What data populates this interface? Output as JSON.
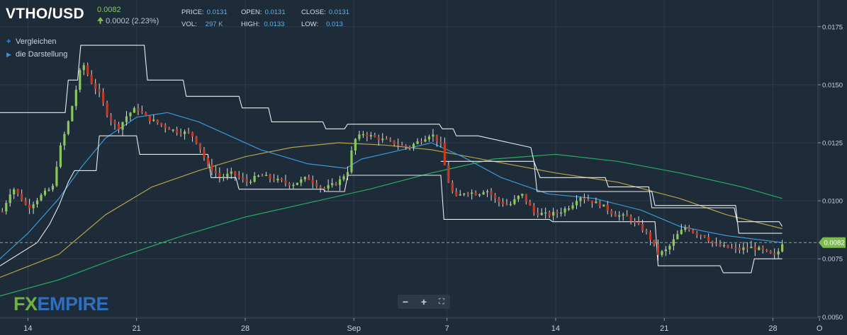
{
  "header": {
    "symbol": "VTHO/USD",
    "last_price": "0.0082",
    "change": "0.0002 (2.23%)",
    "change_direction": "up",
    "stats": [
      {
        "label": "PRICE:",
        "value": "0.0131"
      },
      {
        "label": "OPEN:",
        "value": "0.0131"
      },
      {
        "label": "CLOSE:",
        "value": "0.0131"
      },
      {
        "label": "VOL:",
        "value": "297 K"
      },
      {
        "label": "HIGH:",
        "value": "0.0133"
      },
      {
        "label": "LOW:",
        "value": "0.013"
      }
    ]
  },
  "menu": [
    {
      "icon": "plus-icon",
      "label": "Vergleichen"
    },
    {
      "icon": "play-triangle-icon",
      "label": "die Darstellung"
    }
  ],
  "logo": {
    "fx": "FX",
    "rest": "EMPIRE"
  },
  "zoom_controls": [
    {
      "name": "zoom-out",
      "glyph": "−"
    },
    {
      "name": "zoom-in",
      "glyph": "+"
    },
    {
      "name": "fullscreen",
      "glyph": "⛶"
    }
  ],
  "colors": {
    "background": "#1e2b38",
    "grid": "#2d3b49",
    "up_candle": "#8ac85a",
    "down_candle": "#c23b22",
    "channel": "#e8ecef",
    "ma_fast": "#3a9ad9",
    "ma_mid": "#b5a24a",
    "ma_slow": "#27ae60",
    "price_tag": "#7cbb4e"
  },
  "chart_data": {
    "type": "candlestick",
    "x_ticks": [
      {
        "label": "14",
        "day": 0
      },
      {
        "label": "21",
        "day": 7
      },
      {
        "label": "28",
        "day": 14
      },
      {
        "label": "Sep",
        "day": 21
      },
      {
        "label": "7",
        "day": 27
      },
      {
        "label": "14",
        "day": 34
      },
      {
        "label": "21",
        "day": 41
      },
      {
        "label": "28",
        "day": 48
      },
      {
        "label": "O",
        "day": 51
      }
    ],
    "x_range": [
      -1.8,
      50.9
    ],
    "y_ticks": [
      0.0175,
      0.015,
      0.0125,
      0.01,
      0.0075,
      0.005
    ],
    "y_tick_labels": [
      "0.0175",
      "0.0150",
      "0.0125",
      "0.0100",
      "0.0075",
      "0.0050"
    ],
    "y_range": [
      0.00495,
      0.01865
    ],
    "y_scale": "linear",
    "last_price": 0.0082,
    "last_price_label": "0.0082",
    "grid": true,
    "close_anchors": [
      [
        -1.8,
        0.0093
      ],
      [
        -1.0,
        0.0106
      ],
      [
        0.0,
        0.0097
      ],
      [
        0.8,
        0.0102
      ],
      [
        1.6,
        0.0106
      ],
      [
        2.0,
        0.0121
      ],
      [
        2.6,
        0.0134
      ],
      [
        3.0,
        0.0145
      ],
      [
        3.5,
        0.016
      ],
      [
        4.0,
        0.0152
      ],
      [
        4.6,
        0.0146
      ],
      [
        5.2,
        0.0136
      ],
      [
        5.8,
        0.0131
      ],
      [
        6.4,
        0.0137
      ],
      [
        7.0,
        0.014
      ],
      [
        7.6,
        0.0136
      ],
      [
        8.5,
        0.0133
      ],
      [
        9.5,
        0.013
      ],
      [
        10.5,
        0.0129
      ],
      [
        11.0,
        0.0124
      ],
      [
        11.6,
        0.0115
      ],
      [
        12.4,
        0.011
      ],
      [
        13.2,
        0.0112
      ],
      [
        14.0,
        0.0108
      ],
      [
        15.0,
        0.0111
      ],
      [
        16.0,
        0.0109
      ],
      [
        17.0,
        0.0107
      ],
      [
        18.0,
        0.011
      ],
      [
        19.0,
        0.0105
      ],
      [
        20.0,
        0.0108
      ],
      [
        20.6,
        0.0113
      ],
      [
        21.0,
        0.0126
      ],
      [
        21.6,
        0.0129
      ],
      [
        22.5,
        0.0127
      ],
      [
        23.5,
        0.0125
      ],
      [
        24.5,
        0.0123
      ],
      [
        25.5,
        0.0127
      ],
      [
        26.0,
        0.0129
      ],
      [
        26.6,
        0.0124
      ],
      [
        27.0,
        0.011
      ],
      [
        27.5,
        0.0101
      ],
      [
        28.2,
        0.0104
      ],
      [
        29.0,
        0.0103
      ],
      [
        29.5,
        0.0105
      ],
      [
        30.2,
        0.01
      ],
      [
        31.0,
        0.0098
      ],
      [
        31.8,
        0.0103
      ],
      [
        32.6,
        0.0095
      ],
      [
        33.5,
        0.0094
      ],
      [
        34.2,
        0.0095
      ],
      [
        35.0,
        0.0098
      ],
      [
        35.5,
        0.0102
      ],
      [
        36.2,
        0.01
      ],
      [
        37.0,
        0.0098
      ],
      [
        37.8,
        0.0094
      ],
      [
        38.6,
        0.0093
      ],
      [
        39.4,
        0.0089
      ],
      [
        40.0,
        0.0085
      ],
      [
        40.6,
        0.0077
      ],
      [
        41.2,
        0.0079
      ],
      [
        41.8,
        0.0085
      ],
      [
        42.4,
        0.0089
      ],
      [
        43.0,
        0.0086
      ],
      [
        43.6,
        0.0085
      ],
      [
        44.2,
        0.0081
      ],
      [
        45.0,
        0.008
      ],
      [
        45.8,
        0.0079
      ],
      [
        46.5,
        0.008
      ],
      [
        47.2,
        0.0079
      ],
      [
        47.8,
        0.0077
      ],
      [
        48.2,
        0.0076
      ],
      [
        48.6,
        0.0082
      ]
    ],
    "channel_upper": [
      [
        -1.8,
        0.0138
      ],
      [
        2.4,
        0.0138
      ],
      [
        2.6,
        0.0152
      ],
      [
        3.2,
        0.0152
      ],
      [
        3.4,
        0.0167
      ],
      [
        7.5,
        0.0167
      ],
      [
        7.7,
        0.0152
      ],
      [
        10.0,
        0.0152
      ],
      [
        10.2,
        0.0145
      ],
      [
        13.6,
        0.0145
      ],
      [
        13.8,
        0.014
      ],
      [
        15.5,
        0.014
      ],
      [
        15.7,
        0.0134
      ],
      [
        19.0,
        0.0134
      ],
      [
        19.2,
        0.0131
      ],
      [
        20.4,
        0.0131
      ],
      [
        20.6,
        0.0133
      ],
      [
        26.5,
        0.0133
      ],
      [
        26.7,
        0.0131
      ],
      [
        27.4,
        0.0131
      ],
      [
        27.6,
        0.0128
      ],
      [
        29.0,
        0.0128
      ],
      [
        32.4,
        0.0123
      ],
      [
        32.6,
        0.0117
      ],
      [
        33.0,
        0.011
      ],
      [
        37.2,
        0.011
      ],
      [
        37.4,
        0.0106
      ],
      [
        40.0,
        0.0106
      ],
      [
        40.2,
        0.0097
      ],
      [
        45.5,
        0.0097
      ],
      [
        45.7,
        0.0091
      ],
      [
        48.4,
        0.0091
      ],
      [
        48.6,
        0.0089
      ]
    ],
    "channel_lower": [
      [
        -1.8,
        0.0072
      ],
      [
        0.6,
        0.0082
      ],
      [
        1.4,
        0.009
      ],
      [
        2.0,
        0.0098
      ],
      [
        2.6,
        0.0108
      ],
      [
        3.0,
        0.0113
      ],
      [
        4.4,
        0.0113
      ],
      [
        4.6,
        0.0128
      ],
      [
        7.0,
        0.0128
      ],
      [
        7.2,
        0.012
      ],
      [
        11.6,
        0.012
      ],
      [
        11.8,
        0.011
      ],
      [
        13.4,
        0.011
      ],
      [
        13.6,
        0.0105
      ],
      [
        19.0,
        0.0105
      ],
      [
        19.2,
        0.0104
      ],
      [
        20.4,
        0.0104
      ],
      [
        20.6,
        0.0111
      ],
      [
        26.6,
        0.0111
      ],
      [
        26.8,
        0.0092
      ],
      [
        33.6,
        0.0092
      ],
      [
        33.8,
        0.0091
      ],
      [
        40.4,
        0.0091
      ],
      [
        40.6,
        0.0072
      ],
      [
        44.6,
        0.0072
      ],
      [
        44.8,
        0.0069
      ],
      [
        46.6,
        0.0069
      ],
      [
        46.8,
        0.0075
      ],
      [
        48.6,
        0.0075
      ]
    ],
    "channel_mid": [
      [
        26.6,
        0.0117
      ],
      [
        32.6,
        0.0117
      ],
      [
        32.8,
        0.0104
      ],
      [
        40.2,
        0.0104
      ],
      [
        40.4,
        0.0098
      ],
      [
        45.6,
        0.0098
      ],
      [
        45.8,
        0.0086
      ],
      [
        48.6,
        0.0086
      ]
    ],
    "ma_fast": [
      [
        -1.8,
        0.0075
      ],
      [
        0.0,
        0.0086
      ],
      [
        2.0,
        0.0101
      ],
      [
        3.5,
        0.0115
      ],
      [
        5.0,
        0.0127
      ],
      [
        7.0,
        0.0136
      ],
      [
        9.0,
        0.0138
      ],
      [
        11.0,
        0.0134
      ],
      [
        13.0,
        0.0128
      ],
      [
        15.0,
        0.0122
      ],
      [
        18.0,
        0.0116
      ],
      [
        20.5,
        0.0114
      ],
      [
        21.5,
        0.0118
      ],
      [
        23.5,
        0.0121
      ],
      [
        26.0,
        0.0125
      ],
      [
        28.0,
        0.0119
      ],
      [
        30.5,
        0.011
      ],
      [
        33.5,
        0.0103
      ],
      [
        36.5,
        0.0101
      ],
      [
        39.5,
        0.0096
      ],
      [
        42.0,
        0.0089
      ],
      [
        45.0,
        0.0085
      ],
      [
        48.6,
        0.0082
      ]
    ],
    "ma_mid": [
      [
        -1.8,
        0.0067
      ],
      [
        2.0,
        0.0077
      ],
      [
        5.0,
        0.0094
      ],
      [
        8.0,
        0.0106
      ],
      [
        11.0,
        0.0113
      ],
      [
        14.0,
        0.0119
      ],
      [
        17.0,
        0.0123
      ],
      [
        20.0,
        0.0125
      ],
      [
        23.0,
        0.0124
      ],
      [
        26.0,
        0.0122
      ],
      [
        30.0,
        0.0117
      ],
      [
        34.0,
        0.0112
      ],
      [
        38.0,
        0.0108
      ],
      [
        42.0,
        0.0101
      ],
      [
        45.0,
        0.0094
      ],
      [
        48.6,
        0.0088
      ]
    ],
    "ma_slow": [
      [
        -1.8,
        0.0059
      ],
      [
        2.0,
        0.0066
      ],
      [
        6.0,
        0.0076
      ],
      [
        10.0,
        0.0085
      ],
      [
        14.0,
        0.0093
      ],
      [
        18.0,
        0.0099
      ],
      [
        22.0,
        0.0105
      ],
      [
        26.0,
        0.0112
      ],
      [
        30.0,
        0.0118
      ],
      [
        34.0,
        0.012
      ],
      [
        38.0,
        0.0117
      ],
      [
        42.0,
        0.0112
      ],
      [
        46.0,
        0.0106
      ],
      [
        48.6,
        0.0101
      ]
    ]
  }
}
